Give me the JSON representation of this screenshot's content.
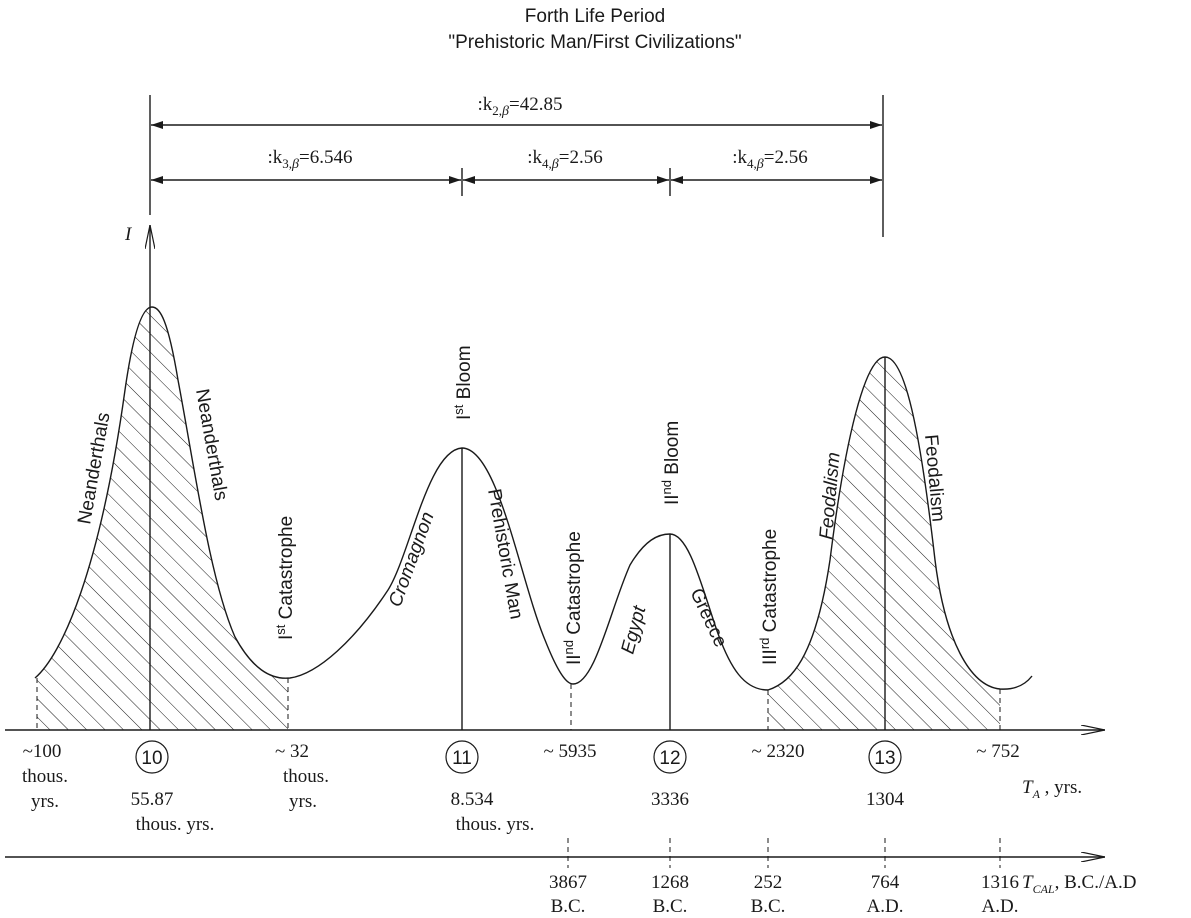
{
  "title_line1": "Forth Life Period",
  "title_line2": "\"Prehistoric Man/First Civilizations\"",
  "spans": {
    "k2": {
      "prefix": ":k",
      "sub": "2,",
      "beta": "β",
      "value": "=42.85"
    },
    "k3": {
      "prefix": ":k",
      "sub": "3,",
      "beta": "β",
      "value": "=6.546"
    },
    "k4a": {
      "prefix": ":k",
      "sub": "4,",
      "beta": "β",
      "value": "=2.56"
    },
    "k4b": {
      "prefix": ":k",
      "sub": "4,",
      "beta": "β",
      "value": "=2.56"
    }
  },
  "y_axis_label": "I",
  "axis_ta": {
    "symbol": "T",
    "sub": "A",
    "unit": " , yrs."
  },
  "axis_tcal": {
    "symbol": "T",
    "sub": "CAL",
    "unit": ", B.C./A.D"
  },
  "curve_labels": {
    "neanderthals_left": "Neanderthals",
    "neanderthals_right": "Neanderthals",
    "cat1": {
      "roman": "I",
      "sup": "st",
      "rest": " Catastrophe"
    },
    "cromagnon": "Cromagnon",
    "bloom1": {
      "roman": "I",
      "sup": "st",
      "rest": " Bloom"
    },
    "prehistoric_man": "Prehistoric Man",
    "cat2": {
      "roman": "II",
      "sup": "nd",
      "rest": " Catastrophe"
    },
    "egypt": "Egypt",
    "bloom2": {
      "roman": "II",
      "sup": "nd",
      "rest": " Bloom"
    },
    "greece": "Greece",
    "cat3": {
      "roman": "III",
      "sup": "rd",
      "rest": " Catastrophe"
    },
    "feodalism_left": "Feodalism",
    "feodalism_right": "Feodalism"
  },
  "nodes": [
    {
      "num": "10",
      "lines": [
        "55.87",
        "thous. yrs."
      ]
    },
    {
      "num": "11",
      "lines": [
        "8.534",
        "thous. yrs."
      ]
    },
    {
      "num": "12",
      "lines": [
        "3336"
      ]
    },
    {
      "num": "13",
      "lines": [
        "1304"
      ]
    }
  ],
  "minima": [
    {
      "lines": [
        "~100",
        "thous.",
        "yrs."
      ]
    },
    {
      "lines": [
        "~ 32",
        "thous.",
        "yrs."
      ]
    },
    {
      "lines": [
        "~ 5935"
      ]
    },
    {
      "lines": [
        "~ 2320"
      ]
    },
    {
      "lines": [
        "~ 752"
      ]
    }
  ],
  "calendar": [
    {
      "year": "3867",
      "era": "B.C."
    },
    {
      "year": "1268",
      "era": "B.C."
    },
    {
      "year": "252",
      "era": "B.C."
    },
    {
      "year": "764",
      "era": "A.D."
    },
    {
      "year": "1316",
      "era": "A.D."
    }
  ]
}
